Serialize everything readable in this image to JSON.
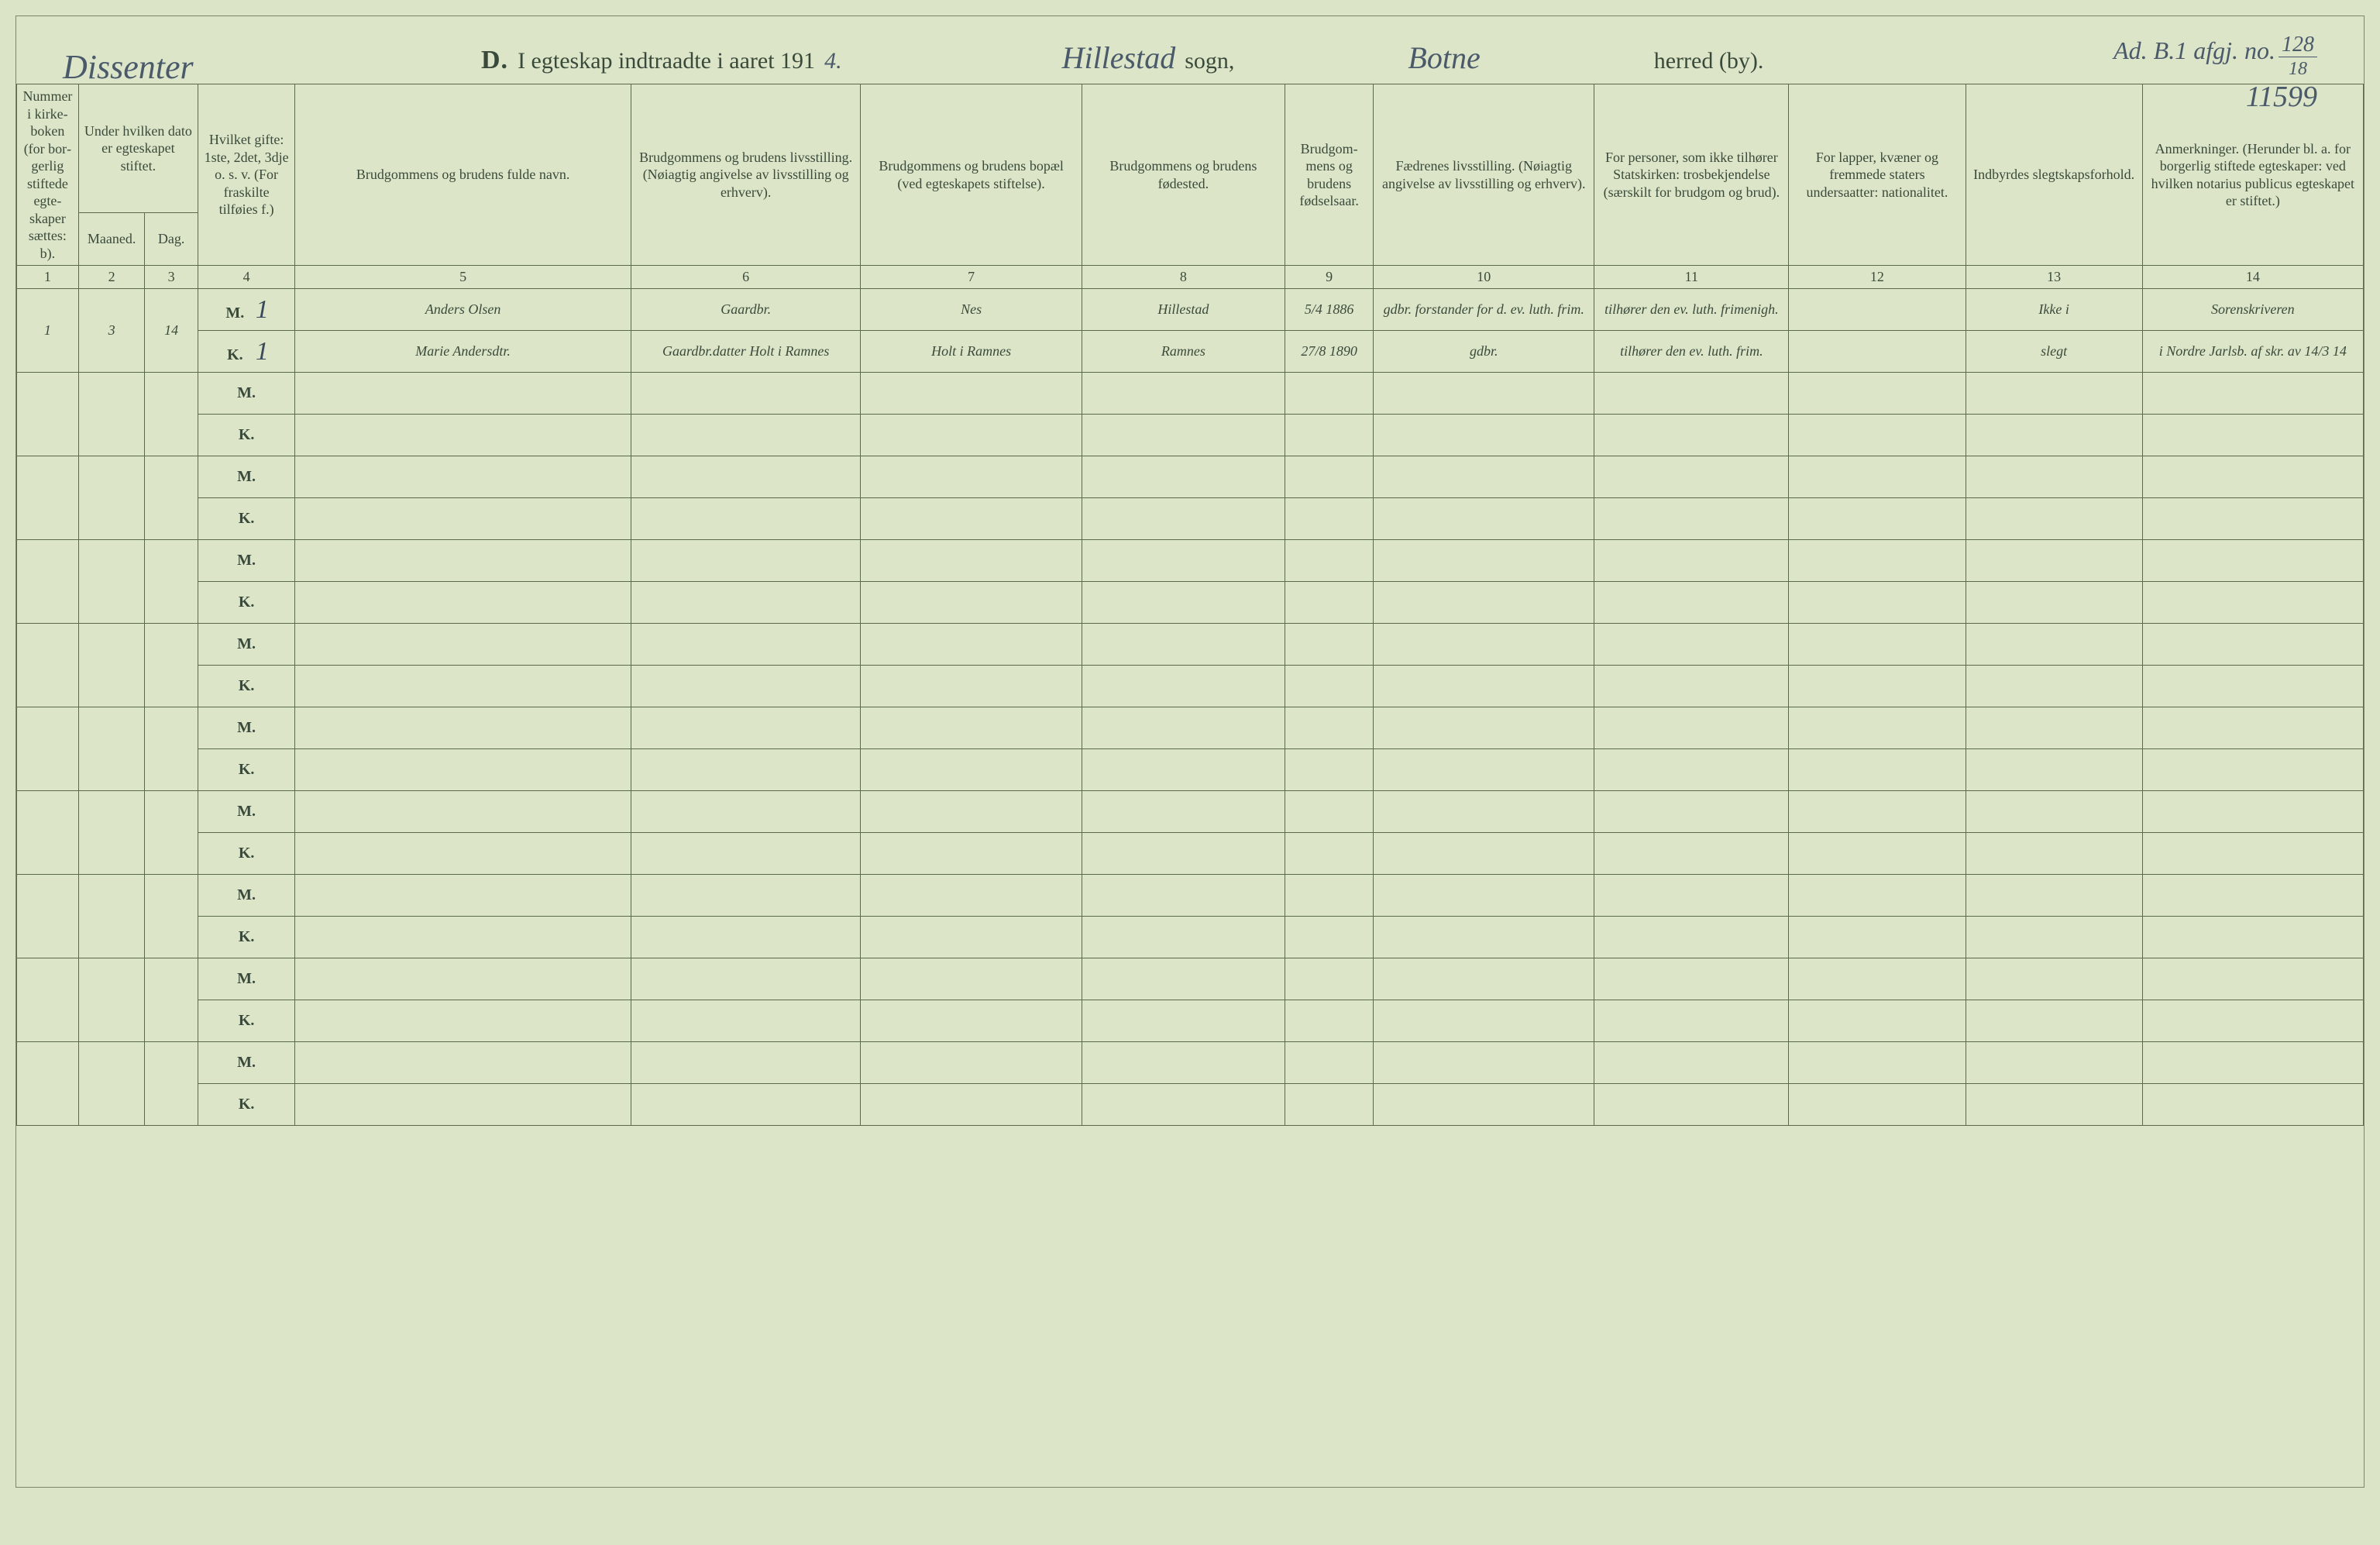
{
  "colors": {
    "page_bg": "#dde5c9",
    "rule": "#5a6a4a",
    "ink_print": "#3a4a3a",
    "ink_hand": "#3a4a5a"
  },
  "typography": {
    "printed_family": "Georgia, Times New Roman, serif",
    "cursive_family": "Brush Script MT, cursive",
    "header_th_fontsize": 18,
    "hand_fontsize": 34,
    "title_fontsize": 30
  },
  "top": {
    "dissenter": "Dissenter",
    "ref_prefix": "Ad. B.1 afgj. no.",
    "ref_num": "128",
    "ref_den": "18",
    "ref_line2": "11599"
  },
  "title": {
    "letter": "D.",
    "text": "I egteskap indtraadte i aaret 191",
    "year_suffix": "4.",
    "sogn_fill": "Hillestad",
    "sogn_lbl": "sogn,",
    "herred_fill": "Botne",
    "herred_lbl": "herred (by)."
  },
  "headers": {
    "c1": "Nummer i kirke­boken (for bor­gerlig stiftede egte­skaper sættes: b).",
    "c2_top": "Under hvilken dato er egte­skapet stiftet.",
    "c2a": "Maaned.",
    "c2b": "Dag.",
    "c3": "Hvilket gifte: 1ste, 2det, 3dje o. s. v. (For fraskilte tilføies f.)",
    "c4": "Brudgommens og brudens fulde navn.",
    "c5": "Brudgommens og brudens livsstilling. (Nøiagtig angivelse av livsstilling og erhverv).",
    "c6": "Brudgommens og brudens bopæl (ved egteskapets stiftelse).",
    "c7": "Brudgommens og brudens fødested.",
    "c8": "Brudgom­mens og brudens fødsels­aar.",
    "c9": "Fædrenes livsstilling. (Nøiagtig angivelse av livsstilling og erhverv).",
    "c10": "For personer, som ikke tilhører Statskirken: trosbekjendelse (særskilt for brudgom og brud).",
    "c11": "For lapper, kvæner og fremmede staters undersaatter: nationalitet.",
    "c12": "Indbyrdes slegtskapsforhold.",
    "c13": "Anmerkninger. (Herunder bl. a. for borgerlig stiftede egte­skaper: ved hvilken notarius publicus egteskapet er stiftet.)"
  },
  "colnums": [
    "1",
    "2",
    "3",
    "4",
    "5",
    "6",
    "7",
    "8",
    "9",
    "10",
    "11",
    "12",
    "13",
    "14"
  ],
  "mk": {
    "m": "M.",
    "k": "K."
  },
  "row1": {
    "num": "1",
    "maaned": "3",
    "dag": "14",
    "m": {
      "gifte": "1",
      "navn": "Anders Olsen",
      "livsstilling": "Gaardbr.",
      "bopael": "Nes",
      "foedested": "Hillestad",
      "foedselsaar": "5/4 1886",
      "faedre": "gdbr. forstander for d. ev. luth. frim.",
      "tros": "tilhører den ev. luth. fri­menigh.",
      "nat": "",
      "slegt": "Ikke i",
      "anm": "Sorenskriveren"
    },
    "k": {
      "gifte": "1",
      "navn": "Marie Andersdtr.",
      "livsstilling": "Gaardbr.datter Holt i Ramnes",
      "bopael": "Holt i Ramnes",
      "foedested": "Ramnes",
      "foedselsaar": "27/8 1890",
      "faedre": "gdbr.",
      "tros": "tilhører den ev. luth. frim.",
      "nat": "",
      "slegt": "slegt",
      "anm": "i Nordre Jarlsb. af skr. av 14/3 14"
    }
  }
}
